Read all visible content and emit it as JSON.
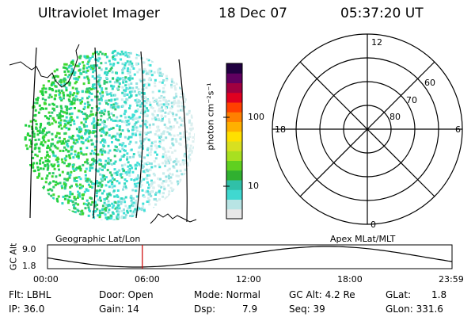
{
  "header": {
    "instrument": "Ultraviolet Imager",
    "date": "18 Dec 07",
    "time": "05:37:20 UT"
  },
  "colorbar": {
    "label": "photon cm⁻²s⁻¹",
    "ticks": [
      {
        "label": "100",
        "value": 100
      },
      {
        "label": "10",
        "value": 10
      }
    ],
    "scale": "log",
    "colors": [
      "#e8e8e8",
      "#b8e4e4",
      "#40d8d0",
      "#30c0a8",
      "#30b030",
      "#60d020",
      "#a8e020",
      "#d8e020",
      "#ffe000",
      "#ffb000",
      "#ff8000",
      "#ff4000",
      "#e00020",
      "#a00040",
      "#600060",
      "#200040"
    ]
  },
  "left_panel": {
    "caption": "Geographic Lat/Lon"
  },
  "polar_plot": {
    "caption": "Apex MLat/MLT",
    "mlt_labels": [
      "12",
      "18",
      "6",
      "0"
    ],
    "mlat_labels": [
      "60",
      "70",
      "80"
    ]
  },
  "altitude_strip": {
    "ylabel": "GC Alt",
    "yticks": [
      "9.0",
      "1.8"
    ],
    "xticks": [
      "00:00",
      "06:00",
      "12:00",
      "18:00",
      "23:59"
    ],
    "marker_time": "05:37:20",
    "marker_color": "#cc0000"
  },
  "status": {
    "flt": "Flt: LBHL",
    "ip": "IP: 36.0",
    "door": "Door: Open",
    "gain": "Gain: 14",
    "mode": "Mode: Normal",
    "dsp": "Dsp:",
    "dsp_value": "7.9",
    "gc_alt": "GC Alt: 4.2 Re",
    "seq": "Seq: 39",
    "glat": "GLat:",
    "glat_value": "1.8",
    "glon": "GLon: 331.6"
  }
}
